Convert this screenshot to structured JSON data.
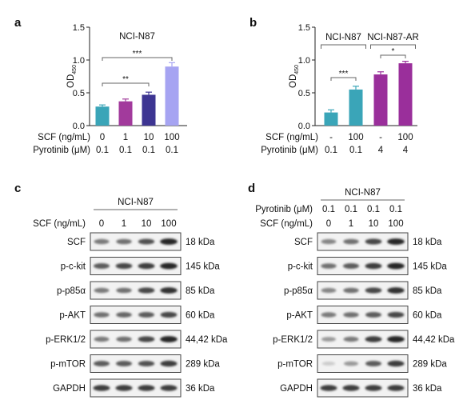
{
  "panels": {
    "a": "a",
    "b": "b",
    "c": "c",
    "d": "d"
  },
  "colors": {
    "teal": "#3aa5b8",
    "magenta": "#a23a9c",
    "indigo": "#3d3592",
    "lavender": "#a6a4f2",
    "purple": "#9a2f9b",
    "axis": "#222222",
    "bracket": "#666666"
  },
  "chart_data": [
    {
      "type": "bar",
      "panel": "a",
      "title": "NCI-N87",
      "ylabel": "OD",
      "ylabel_sub": "450",
      "ylim": [
        0,
        1.5
      ],
      "yticks": [
        "0.0",
        "0.5",
        "1.0",
        "1.5"
      ],
      "categories": [
        "1",
        "2",
        "3",
        "4"
      ],
      "values": [
        0.29,
        0.37,
        0.47,
        0.9
      ],
      "errors": [
        0.025,
        0.035,
        0.04,
        0.06
      ],
      "bar_colors": [
        "#3aa5b8",
        "#a23a9c",
        "#3d3592",
        "#a6a4f2"
      ],
      "row_labels": [
        {
          "label": "SCF (ng/mL)",
          "values": [
            "0",
            "1",
            "10",
            "100"
          ]
        },
        {
          "label": "Pyrotinib (μM)",
          "values": [
            "0.1",
            "0.1",
            "0.1",
            "0.1"
          ]
        }
      ],
      "significance": [
        {
          "from": 0,
          "to": 2,
          "label": "**"
        },
        {
          "from": 0,
          "to": 3,
          "label": "***"
        }
      ],
      "group_labels": []
    },
    {
      "type": "bar",
      "panel": "b",
      "title": "",
      "ylabel": "OD",
      "ylabel_sub": "450",
      "ylim": [
        0,
        1.5
      ],
      "yticks": [
        "0.0",
        "0.5",
        "1.0",
        "1.5"
      ],
      "categories": [
        "1",
        "2",
        "3",
        "4"
      ],
      "values": [
        0.2,
        0.55,
        0.78,
        0.95
      ],
      "errors": [
        0.04,
        0.05,
        0.04,
        0.03
      ],
      "bar_colors": [
        "#3aa5b8",
        "#3aa5b8",
        "#9a2f9b",
        "#9a2f9b"
      ],
      "row_labels": [
        {
          "label": "SCF (ng/mL)",
          "values": [
            "-",
            "100",
            "-",
            "100"
          ]
        },
        {
          "label": "Pyrotinib (μM)",
          "values": [
            "0.1",
            "0.1",
            "4",
            "4"
          ]
        }
      ],
      "significance": [
        {
          "from": 0,
          "to": 1,
          "label": "***"
        },
        {
          "from": 2,
          "to": 3,
          "label": "*"
        }
      ],
      "group_labels": [
        {
          "from": 0,
          "to": 1,
          "label": "NCI-N87"
        },
        {
          "from": 2,
          "to": 3,
          "label": "NCI-N87-AR"
        }
      ]
    }
  ],
  "blot_c": {
    "cell_line": "NCI-N87",
    "header_rows": [
      {
        "label": "SCF (ng/mL)",
        "values": [
          "0",
          "1",
          "10",
          "100"
        ]
      }
    ],
    "proteins": [
      {
        "name": "SCF",
        "kda": "18 kDa",
        "intensity": [
          0.55,
          0.6,
          0.75,
          0.95
        ]
      },
      {
        "name": "p-c-kit",
        "kda": "145 kDa",
        "intensity": [
          0.7,
          0.8,
          0.85,
          0.95
        ]
      },
      {
        "name": "p-p85α",
        "kda": "85 kDa",
        "intensity": [
          0.55,
          0.6,
          0.8,
          0.9
        ]
      },
      {
        "name": "p-AKT",
        "kda": "60 kDa",
        "intensity": [
          0.6,
          0.65,
          0.7,
          0.8
        ]
      },
      {
        "name": "p-ERK1/2",
        "kda": "44,42 kDa",
        "intensity": [
          0.55,
          0.6,
          0.8,
          0.95
        ]
      },
      {
        "name": "p-mTOR",
        "kda": "289 kDa",
        "intensity": [
          0.7,
          0.7,
          0.75,
          0.85
        ]
      },
      {
        "name": "GAPDH",
        "kda": "36 kDa",
        "intensity": [
          0.85,
          0.85,
          0.85,
          0.85
        ]
      }
    ]
  },
  "blot_d": {
    "cell_line": "NCI-N87",
    "header_rows": [
      {
        "label": "Pyrotinib (μM)",
        "values": [
          "0.1",
          "0.1",
          "0.1",
          "0.1"
        ]
      },
      {
        "label": "SCF (ng/mL)",
        "values": [
          "0",
          "1",
          "10",
          "100"
        ]
      }
    ],
    "proteins": [
      {
        "name": "SCF",
        "kda": "18 kDa",
        "intensity": [
          0.5,
          0.6,
          0.8,
          0.95
        ]
      },
      {
        "name": "p-c-kit",
        "kda": "145 kDa",
        "intensity": [
          0.6,
          0.7,
          0.85,
          0.95
        ]
      },
      {
        "name": "p-p85α",
        "kda": "85 kDa",
        "intensity": [
          0.5,
          0.6,
          0.8,
          0.9
        ]
      },
      {
        "name": "p-AKT",
        "kda": "60 kDa",
        "intensity": [
          0.55,
          0.6,
          0.7,
          0.8
        ]
      },
      {
        "name": "p-ERK1/2",
        "kda": "44,42 kDa",
        "intensity": [
          0.4,
          0.55,
          0.85,
          0.95
        ]
      },
      {
        "name": "p-mTOR",
        "kda": "289 kDa",
        "intensity": [
          0.15,
          0.4,
          0.7,
          0.85
        ]
      },
      {
        "name": "GAPDH",
        "kda": "36 kDa",
        "intensity": [
          0.85,
          0.85,
          0.85,
          0.85
        ]
      }
    ]
  }
}
